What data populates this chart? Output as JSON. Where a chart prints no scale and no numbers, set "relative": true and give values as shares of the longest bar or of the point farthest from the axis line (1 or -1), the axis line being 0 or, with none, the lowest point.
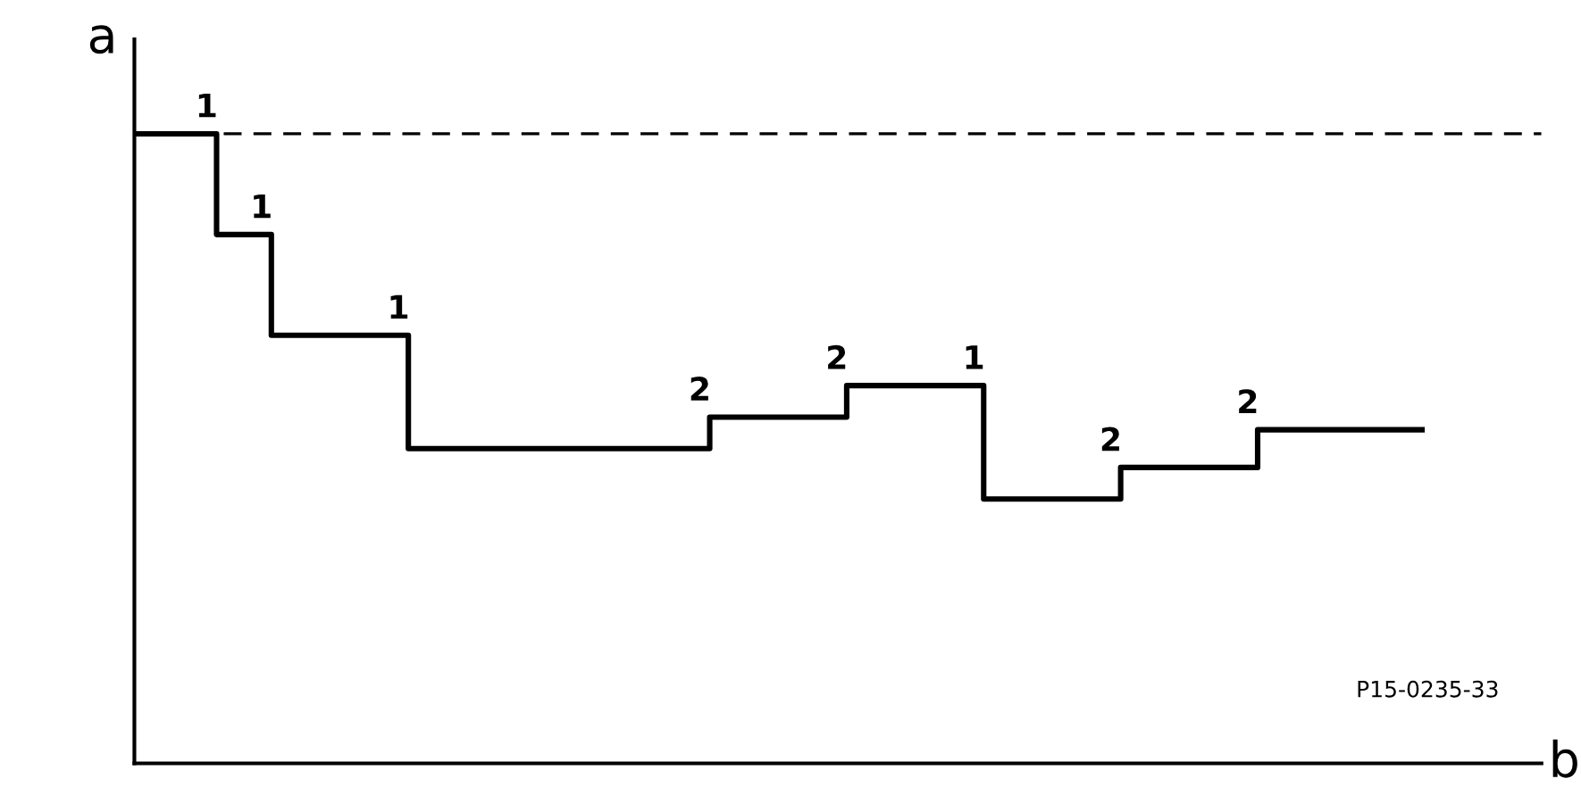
{
  "chart_data": {
    "type": "step",
    "relative": true,
    "xlabel": "b",
    "ylabel": "a",
    "legend": false,
    "grid": false,
    "categories": [
      null,
      null,
      null,
      null,
      null,
      null,
      null,
      null,
      null,
      null,
      null,
      null,
      null,
      null,
      null,
      null,
      null,
      null,
      null,
      null,
      null,
      null,
      null,
      null,
      null,
      null,
      null,
      null,
      null,
      null,
      null,
      null,
      null,
      null,
      null,
      null,
      null,
      null,
      null,
      null,
      null,
      null,
      null,
      null,
      null,
      null,
      null,
      null
    ],
    "series": [
      {
        "color": "#000000",
        "values": [
          1,
          1,
          1,
          0.84,
          0.84,
          0.68,
          0.68,
          0.68,
          0.68,
          0.68,
          0.5,
          0.5,
          0.5,
          0.5,
          0.5,
          0.5,
          0.5,
          0.5,
          0.5,
          0.5,
          0.5,
          0.55,
          0.55,
          0.55,
          0.55,
          0.55,
          0.6,
          0.6,
          0.6,
          0.6,
          0.6,
          0.42,
          0.42,
          0.42,
          0.42,
          0.42,
          0.47,
          0.47,
          0.47,
          0.47,
          0.47,
          0.53,
          0.53,
          0.53,
          0.53,
          0.53,
          0.53,
          0.53
        ]
      }
    ],
    "ref_lines": [
      {
        "axis": "y",
        "value": 1,
        "line_style": "dashed",
        "color": "#000000"
      }
    ],
    "annotations": [
      "1",
      "1",
      "1",
      "2",
      "2",
      "1",
      "2",
      "2",
      "P15-0235-33"
    ]
  }
}
